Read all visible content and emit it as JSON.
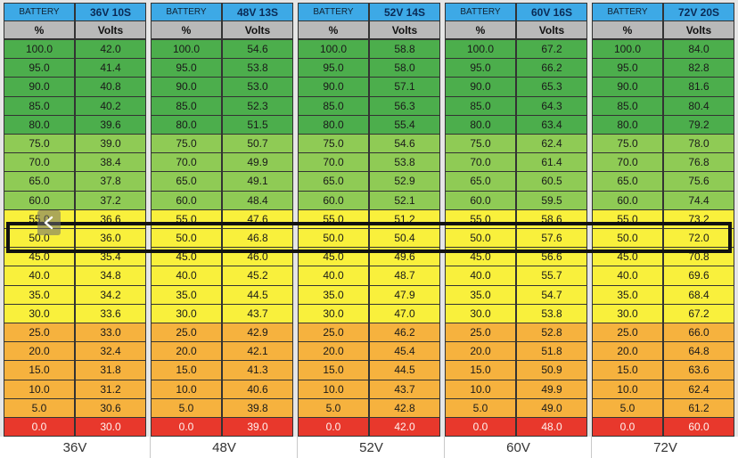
{
  "colors": {
    "header": "#3da9e6",
    "subheader": "#b9b9b9",
    "dark_green": "#4cae4c",
    "light_green": "#8fcb55",
    "yellow": "#f9f03c",
    "orange": "#f6b23e",
    "red": "#e8382c",
    "highlight_border": "#111111"
  },
  "row_bands": [
    "dark_green",
    "dark_green",
    "dark_green",
    "dark_green",
    "dark_green",
    "light_green",
    "light_green",
    "light_green",
    "light_green",
    "yellow",
    "yellow",
    "yellow",
    "yellow",
    "yellow",
    "yellow",
    "orange",
    "orange",
    "orange",
    "orange",
    "orange",
    "red"
  ],
  "percent_header": "%",
  "volts_header": "Volts",
  "battery_label": "BATTERY",
  "highlighted_percent": "50.0",
  "nav_icon": "chevron-left-icon",
  "tables": [
    {
      "voltage": "36V 10S",
      "caption": "36V",
      "rows": [
        [
          "100.0",
          "42.0"
        ],
        [
          "95.0",
          "41.4"
        ],
        [
          "90.0",
          "40.8"
        ],
        [
          "85.0",
          "40.2"
        ],
        [
          "80.0",
          "39.6"
        ],
        [
          "75.0",
          "39.0"
        ],
        [
          "70.0",
          "38.4"
        ],
        [
          "65.0",
          "37.8"
        ],
        [
          "60.0",
          "37.2"
        ],
        [
          "55.0",
          "36.6"
        ],
        [
          "50.0",
          "36.0"
        ],
        [
          "45.0",
          "35.4"
        ],
        [
          "40.0",
          "34.8"
        ],
        [
          "35.0",
          "34.2"
        ],
        [
          "30.0",
          "33.6"
        ],
        [
          "25.0",
          "33.0"
        ],
        [
          "20.0",
          "32.4"
        ],
        [
          "15.0",
          "31.8"
        ],
        [
          "10.0",
          "31.2"
        ],
        [
          "5.0",
          "30.6"
        ],
        [
          "0.0",
          "30.0"
        ]
      ]
    },
    {
      "voltage": "48V 13S",
      "caption": "48V",
      "rows": [
        [
          "100.0",
          "54.6"
        ],
        [
          "95.0",
          "53.8"
        ],
        [
          "90.0",
          "53.0"
        ],
        [
          "85.0",
          "52.3"
        ],
        [
          "80.0",
          "51.5"
        ],
        [
          "75.0",
          "50.7"
        ],
        [
          "70.0",
          "49.9"
        ],
        [
          "65.0",
          "49.1"
        ],
        [
          "60.0",
          "48.4"
        ],
        [
          "55.0",
          "47.6"
        ],
        [
          "50.0",
          "46.8"
        ],
        [
          "45.0",
          "46.0"
        ],
        [
          "40.0",
          "45.2"
        ],
        [
          "35.0",
          "44.5"
        ],
        [
          "30.0",
          "43.7"
        ],
        [
          "25.0",
          "42.9"
        ],
        [
          "20.0",
          "42.1"
        ],
        [
          "15.0",
          "41.3"
        ],
        [
          "10.0",
          "40.6"
        ],
        [
          "5.0",
          "39.8"
        ],
        [
          "0.0",
          "39.0"
        ]
      ]
    },
    {
      "voltage": "52V 14S",
      "caption": "52V",
      "rows": [
        [
          "100.0",
          "58.8"
        ],
        [
          "95.0",
          "58.0"
        ],
        [
          "90.0",
          "57.1"
        ],
        [
          "85.0",
          "56.3"
        ],
        [
          "80.0",
          "55.4"
        ],
        [
          "75.0",
          "54.6"
        ],
        [
          "70.0",
          "53.8"
        ],
        [
          "65.0",
          "52.9"
        ],
        [
          "60.0",
          "52.1"
        ],
        [
          "55.0",
          "51.2"
        ],
        [
          "50.0",
          "50.4"
        ],
        [
          "45.0",
          "49.6"
        ],
        [
          "40.0",
          "48.7"
        ],
        [
          "35.0",
          "47.9"
        ],
        [
          "30.0",
          "47.0"
        ],
        [
          "25.0",
          "46.2"
        ],
        [
          "20.0",
          "45.4"
        ],
        [
          "15.0",
          "44.5"
        ],
        [
          "10.0",
          "43.7"
        ],
        [
          "5.0",
          "42.8"
        ],
        [
          "0.0",
          "42.0"
        ]
      ]
    },
    {
      "voltage": "60V 16S",
      "caption": "60V",
      "rows": [
        [
          "100.0",
          "67.2"
        ],
        [
          "95.0",
          "66.2"
        ],
        [
          "90.0",
          "65.3"
        ],
        [
          "85.0",
          "64.3"
        ],
        [
          "80.0",
          "63.4"
        ],
        [
          "75.0",
          "62.4"
        ],
        [
          "70.0",
          "61.4"
        ],
        [
          "65.0",
          "60.5"
        ],
        [
          "60.0",
          "59.5"
        ],
        [
          "55.0",
          "58.6"
        ],
        [
          "50.0",
          "57.6"
        ],
        [
          "45.0",
          "56.6"
        ],
        [
          "40.0",
          "55.7"
        ],
        [
          "35.0",
          "54.7"
        ],
        [
          "30.0",
          "53.8"
        ],
        [
          "25.0",
          "52.8"
        ],
        [
          "20.0",
          "51.8"
        ],
        [
          "15.0",
          "50.9"
        ],
        [
          "10.0",
          "49.9"
        ],
        [
          "5.0",
          "49.0"
        ],
        [
          "0.0",
          "48.0"
        ]
      ]
    },
    {
      "voltage": "72V 20S",
      "caption": "72V",
      "rows": [
        [
          "100.0",
          "84.0"
        ],
        [
          "95.0",
          "82.8"
        ],
        [
          "90.0",
          "81.6"
        ],
        [
          "85.0",
          "80.4"
        ],
        [
          "80.0",
          "79.2"
        ],
        [
          "75.0",
          "78.0"
        ],
        [
          "70.0",
          "76.8"
        ],
        [
          "65.0",
          "75.6"
        ],
        [
          "60.0",
          "74.4"
        ],
        [
          "55.0",
          "73.2"
        ],
        [
          "50.0",
          "72.0"
        ],
        [
          "45.0",
          "70.8"
        ],
        [
          "40.0",
          "69.6"
        ],
        [
          "35.0",
          "68.4"
        ],
        [
          "30.0",
          "67.2"
        ],
        [
          "25.0",
          "66.0"
        ],
        [
          "20.0",
          "64.8"
        ],
        [
          "15.0",
          "63.6"
        ],
        [
          "10.0",
          "62.4"
        ],
        [
          "5.0",
          "61.2"
        ],
        [
          "0.0",
          "60.0"
        ]
      ]
    }
  ]
}
